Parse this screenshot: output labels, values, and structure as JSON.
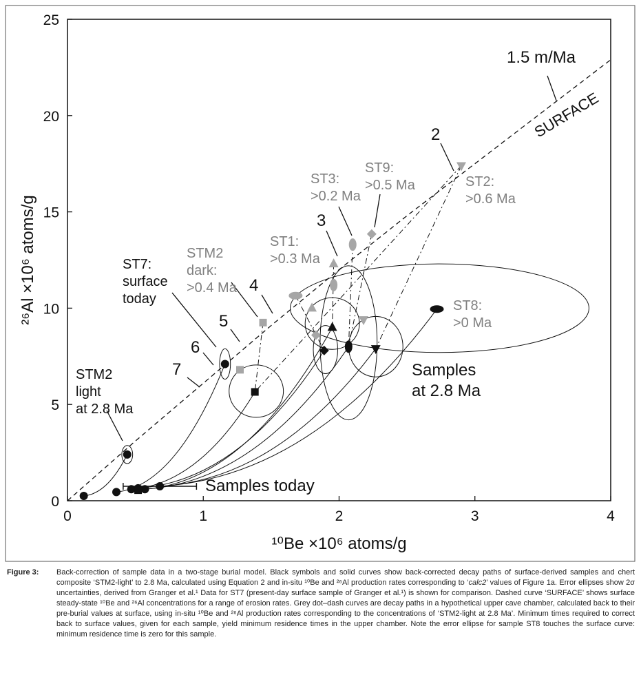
{
  "chart_data": {
    "type": "scatter",
    "xlabel": "¹⁰Be ×10⁶ atoms/g",
    "ylabel": "²⁶Al ×10⁶ atoms/g",
    "xlim": [
      0,
      4
    ],
    "xticks": [
      0,
      1,
      2,
      3,
      4
    ],
    "ylim": [
      0,
      25
    ],
    "yticks": [
      0,
      5,
      10,
      15,
      20,
      25
    ],
    "points": {
      "x": [
        0.12,
        0.36,
        0.47,
        0.52,
        0.57,
        0.68,
        0.52,
        2.72,
        1.38,
        1.95,
        1.89,
        2.07,
        2.27,
        1.16,
        0.44,
        2.9,
        2.24,
        2.1,
        1.96,
        1.44,
        1.27,
        1.68,
        1.8,
        1.96,
        1.83,
        2.18
      ],
      "y": [
        0.25,
        0.45,
        0.6,
        0.65,
        0.6,
        0.75,
        0.55,
        9.95,
        5.65,
        9.0,
        7.8,
        8.0,
        7.9,
        7.1,
        2.4,
        17.4,
        13.85,
        13.3,
        12.3,
        9.25,
        6.8,
        10.65,
        10.0,
        11.2,
        8.6,
        9.4
      ],
      "markers": [
        "circle",
        "circle",
        "circle",
        "circle",
        "circle",
        "circle",
        "square",
        "oval-h",
        "square",
        "triangle",
        "diamond",
        "oval-v",
        "triangle-down",
        "circle",
        "circle",
        "triangle-down",
        "diamond",
        "oval-v",
        "triangle",
        "square",
        "square",
        "oval-h",
        "triangle",
        "oval-v",
        "diamond",
        "triangle-down"
      ],
      "colors": [
        "#111111",
        "#111111",
        "#111111",
        "#111111",
        "#111111",
        "#111111",
        "#111111",
        "#111111",
        "#111111",
        "#111111",
        "#111111",
        "#111111",
        "#111111",
        "#111111",
        "#111111",
        "#a6a6a6",
        "#a6a6a6",
        "#a6a6a6",
        "#a6a6a6",
        "#a6a6a6",
        "#a6a6a6",
        "#a6a6a6",
        "#a6a6a6",
        "#a6a6a6",
        "#a6a6a6",
        "#a6a6a6"
      ],
      "xerr": [
        null,
        null,
        null,
        null,
        null,
        0.27,
        null,
        null,
        null,
        null,
        null,
        null,
        null,
        null,
        null,
        null,
        null,
        null,
        null,
        null,
        null,
        null,
        null,
        null,
        null,
        null
      ]
    },
    "ellipses": [
      {
        "cx": 2.74,
        "cy": 10.0,
        "rx": 1.1,
        "ry": 2.3
      },
      {
        "cx": 1.39,
        "cy": 5.69,
        "rx": 0.2,
        "ry": 1.36
      },
      {
        "cx": 1.95,
        "cy": 9.2,
        "rx": 0.2,
        "ry": 1.34
      },
      {
        "cx": 1.9,
        "cy": 7.85,
        "rx": 0.09,
        "ry": 1.25
      },
      {
        "cx": 2.07,
        "cy": 8.2,
        "rx": 0.21,
        "ry": 4.0
      },
      {
        "cx": 2.27,
        "cy": 8.0,
        "rx": 0.2,
        "ry": 1.57
      },
      {
        "cx": 1.16,
        "cy": 7.1,
        "rx": 0.04,
        "ry": 0.79
      },
      {
        "cx": 0.44,
        "cy": 2.4,
        "rx": 0.04,
        "ry": 0.47
      }
    ],
    "surface": {
      "x": [
        0,
        0.5,
        1,
        1.5,
        2,
        2.5,
        3,
        3.5,
        4
      ],
      "y": [
        0,
        3.1,
        6.1,
        9.1,
        12.0,
        14.8,
        17.5,
        20.2,
        22.9
      ]
    },
    "annotations": [
      {
        "lines": [
          "1.5 m/Ma"
        ],
        "color": "#111111"
      },
      {
        "lines": [
          "SURFACE"
        ],
        "color": "#111111"
      },
      {
        "lines": [
          "2"
        ],
        "color": "#111111"
      },
      {
        "lines": [
          "3"
        ],
        "color": "#111111"
      },
      {
        "lines": [
          "4"
        ],
        "color": "#111111"
      },
      {
        "lines": [
          "5"
        ],
        "color": "#111111"
      },
      {
        "lines": [
          "6"
        ],
        "color": "#111111"
      },
      {
        "lines": [
          "7"
        ],
        "color": "#111111"
      },
      {
        "lines": [
          "ST9:",
          ">0.5 Ma"
        ],
        "color": "#808080"
      },
      {
        "lines": [
          "ST3:",
          ">0.2 Ma"
        ],
        "color": "#808080"
      },
      {
        "lines": [
          "ST2:",
          ">0.6 Ma"
        ],
        "color": "#808080"
      },
      {
        "lines": [
          "ST1:",
          ">0.3 Ma"
        ],
        "color": "#808080"
      },
      {
        "lines": [
          "STM2",
          "dark:",
          ">0.4 Ma"
        ],
        "color": "#808080"
      },
      {
        "lines": [
          "ST7:",
          "surface",
          "today"
        ],
        "color": "#111111"
      },
      {
        "lines": [
          "ST8:",
          ">0 Ma"
        ],
        "color": "#808080"
      },
      {
        "lines": [
          "Samples",
          "at 2.8 Ma"
        ],
        "color": "#111111"
      },
      {
        "lines": [
          "STM2",
          "light",
          "at 2.8 Ma"
        ],
        "color": "#111111"
      },
      {
        "lines": [
          "Samples today"
        ],
        "color": "#111111"
      }
    ]
  },
  "caption": {
    "label": "Figure 3:",
    "text": [
      "Back-correction of sample data in a two-stage burial model. Black symbols and solid curves show back-corrected decay paths of surface-derived samples and chert composite ‘STM2-light’ to 2.8 Ma, calculated using Equation 2 and in-situ ¹⁰Be and ²⁶Al production rates corresponding to ‘",
      "calc2",
      "’ values of Figure 1a. Error ellipses show 2σ uncertainties, derived from Granger et al.¹ Data for ST7 (present-day surface sample of Granger et al.¹) is shown for comparison. Dashed curve ‘SURFACE’ shows surface steady-state ¹⁰Be and ²⁶Al concentrations for a range of erosion rates. Grey dot–dash curves are decay paths in a hypothetical upper cave chamber, calculated back to their pre-burial values at surface, using in-situ ¹⁰Be and ²⁶Al production rates corresponding to the concentrations of ‘STM2-light at 2.8 Ma’. Minimum times required to correct back to surface values, given for each sample, yield minimum residence times in the upper chamber. Note the error ellipse for sample ST8 touches the surface curve: minimum residence time is zero for this sample."
    ]
  }
}
